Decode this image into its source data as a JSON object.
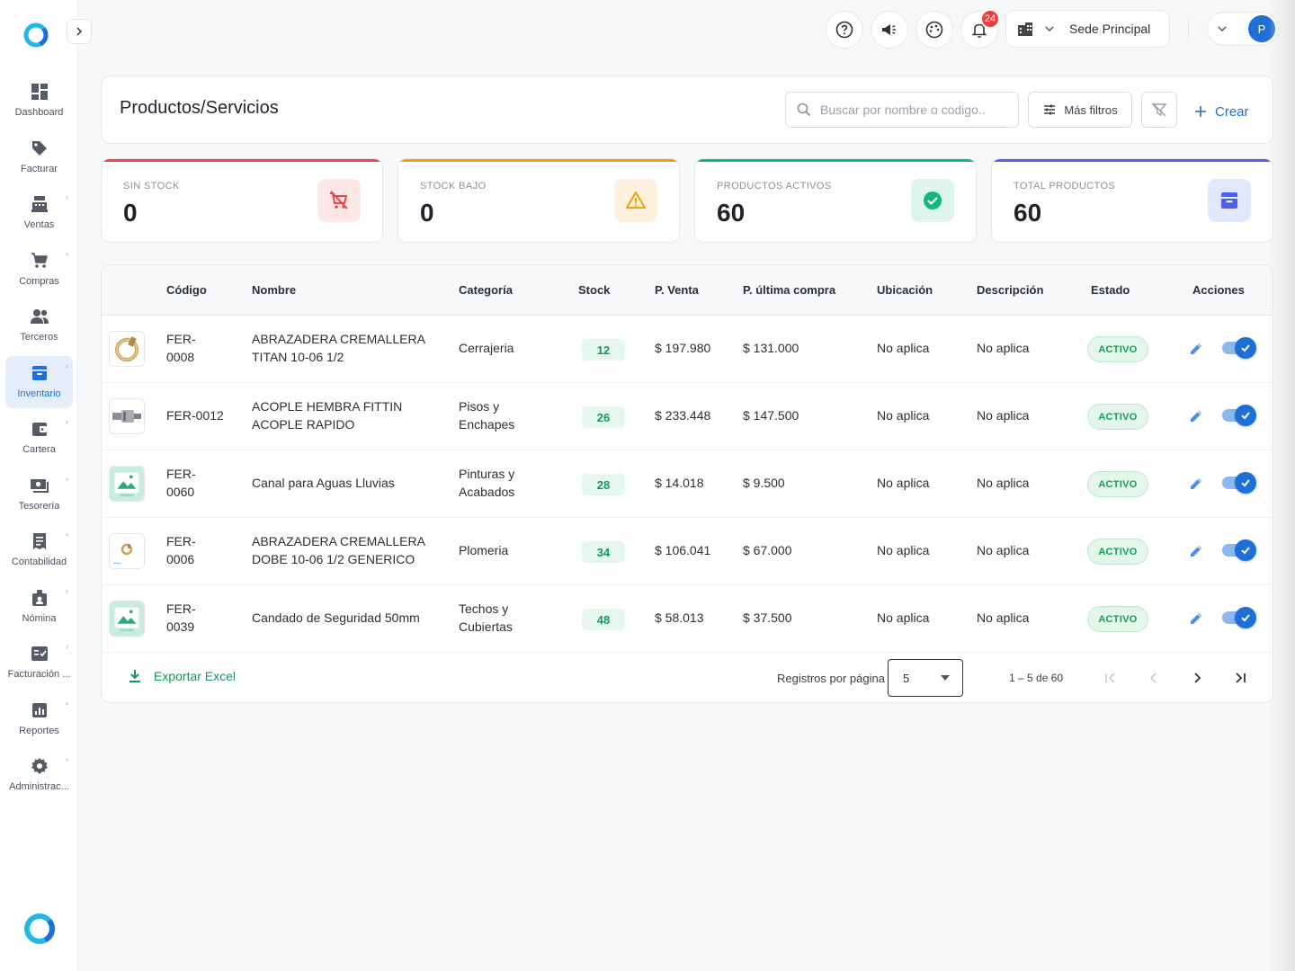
{
  "sidebar": {
    "items": [
      {
        "label": "Dashboard",
        "icon": "dashboard-icon",
        "active": false,
        "chevron": false
      },
      {
        "label": "Facturar",
        "icon": "tag-icon",
        "active": false,
        "chevron": false
      },
      {
        "label": "Ventas",
        "icon": "cash-register-icon",
        "active": false,
        "chevron": true
      },
      {
        "label": "Compras",
        "icon": "cart-icon",
        "active": false,
        "chevron": true
      },
      {
        "label": "Terceros",
        "icon": "people-icon",
        "active": false,
        "chevron": false
      },
      {
        "label": "Inventario",
        "icon": "archive-icon",
        "active": true,
        "chevron": true
      },
      {
        "label": "Cartera",
        "icon": "wallet-icon",
        "active": false,
        "chevron": true
      },
      {
        "label": "Tesorería",
        "icon": "money-icon",
        "active": false,
        "chevron": true
      },
      {
        "label": "Contabilidad",
        "icon": "receipt-icon",
        "active": false,
        "chevron": true
      },
      {
        "label": "Nómina",
        "icon": "badge-icon",
        "active": false,
        "chevron": true
      },
      {
        "label": "Facturación ...",
        "icon": "invoice-check-icon",
        "active": false,
        "chevron": true
      },
      {
        "label": "Reportes",
        "icon": "report-icon",
        "active": false,
        "chevron": true
      },
      {
        "label": "Administrac...",
        "icon": "gear-icon",
        "active": false,
        "chevron": true
      }
    ]
  },
  "topbar": {
    "notification_count": "24",
    "sede_label": "Sede Principal",
    "avatar_initial": "P"
  },
  "header": {
    "title": "Productos/Servicios",
    "search_placeholder": "Buscar por nombre o codigo..",
    "more_filters_label": "Más filtros",
    "create_label": "Crear"
  },
  "stats": [
    {
      "label": "SIN STOCK",
      "value": "0",
      "color": "#ef4444",
      "icon_bg": "#fde8e8",
      "icon": "no-cart-icon"
    },
    {
      "label": "STOCK BAJO",
      "value": "0",
      "color": "#f59e0b",
      "icon_bg": "#fdf1de",
      "icon": "warning-icon"
    },
    {
      "label": "PRODUCTOS ACTIVOS",
      "value": "60",
      "color": "#10b981",
      "icon_bg": "#ddf5ea",
      "icon": "check-circle-icon"
    },
    {
      "label": "TOTAL PRODUCTOS",
      "value": "60",
      "color": "#4f5ee8",
      "icon_bg": "#e3e7fb",
      "icon": "archive-icon"
    }
  ],
  "table": {
    "headers": {
      "codigo": "Código",
      "nombre": "Nombre",
      "categoria": "Categoría",
      "stock": "Stock",
      "p_venta": "P. Venta",
      "p_ultima_compra": "P. última compra",
      "ubicacion": "Ubicación",
      "descripcion": "Descripción",
      "estado": "Estado",
      "acciones": "Acciones"
    },
    "rows": [
      {
        "codigo_l1": "FER-",
        "codigo_l2": "0008",
        "nombre_l1": "ABRAZADERA CREMALLERA",
        "nombre_l2": "TITAN 10-06 1/2",
        "categoria_l1": "Cerrajeria",
        "categoria_l2": "",
        "stock": "12",
        "p_venta": "$ 197.980",
        "p_ultima_compra": "$ 131.000",
        "ubicacion": "No aplica",
        "descripcion": "No aplica",
        "estado": "ACTIVO",
        "thumb": "clamp-photo"
      },
      {
        "codigo_l1": "FER-0012",
        "codigo_l2": "",
        "nombre_l1": "ACOPLE HEMBRA FITTIN",
        "nombre_l2": "ACOPLE RAPIDO",
        "categoria_l1": "Pisos y",
        "categoria_l2": "Enchapes",
        "stock": "26",
        "p_venta": "$ 233.448",
        "p_ultima_compra": "$ 147.500",
        "ubicacion": "No aplica",
        "descripcion": "No aplica",
        "estado": "ACTIVO",
        "thumb": "coupler-photo"
      },
      {
        "codigo_l1": "FER-",
        "codigo_l2": "0060",
        "nombre_l1": "Canal para Aguas Lluvias",
        "nombre_l2": "",
        "categoria_l1": "Pinturas y",
        "categoria_l2": "Acabados",
        "stock": "28",
        "p_venta": "$ 14.018",
        "p_ultima_compra": "$ 9.500",
        "ubicacion": "No aplica",
        "descripcion": "No aplica",
        "estado": "ACTIVO",
        "thumb": "placeholder"
      },
      {
        "codigo_l1": "FER-",
        "codigo_l2": "0006",
        "nombre_l1": "ABRAZADERA CREMALLERA",
        "nombre_l2": "DOBE 10-06 1/2 GENERICO",
        "categoria_l1": "Plomeria",
        "categoria_l2": "",
        "stock": "34",
        "p_venta": "$ 106.041",
        "p_ultima_compra": "$ 67.000",
        "ubicacion": "No aplica",
        "descripcion": "No aplica",
        "estado": "ACTIVO",
        "thumb": "small-clamp-photo"
      },
      {
        "codigo_l1": "FER-",
        "codigo_l2": "0039",
        "nombre_l1": "Candado de Seguridad 50mm",
        "nombre_l2": "",
        "categoria_l1": "Techos y",
        "categoria_l2": "Cubiertas",
        "stock": "48",
        "p_venta": "$ 58.013",
        "p_ultima_compra": "$ 37.500",
        "ubicacion": "No aplica",
        "descripcion": "No aplica",
        "estado": "ACTIVO",
        "thumb": "placeholder"
      }
    ]
  },
  "footer": {
    "export_label": "Exportar Excel",
    "rows_per_page_label": "Registros por página",
    "rows_per_page_value": "5",
    "range_label": "1 – 5 de 60"
  },
  "colors": {
    "primary": "#1e6fd9",
    "success": "#17965a",
    "danger": "#ef3b3b"
  }
}
